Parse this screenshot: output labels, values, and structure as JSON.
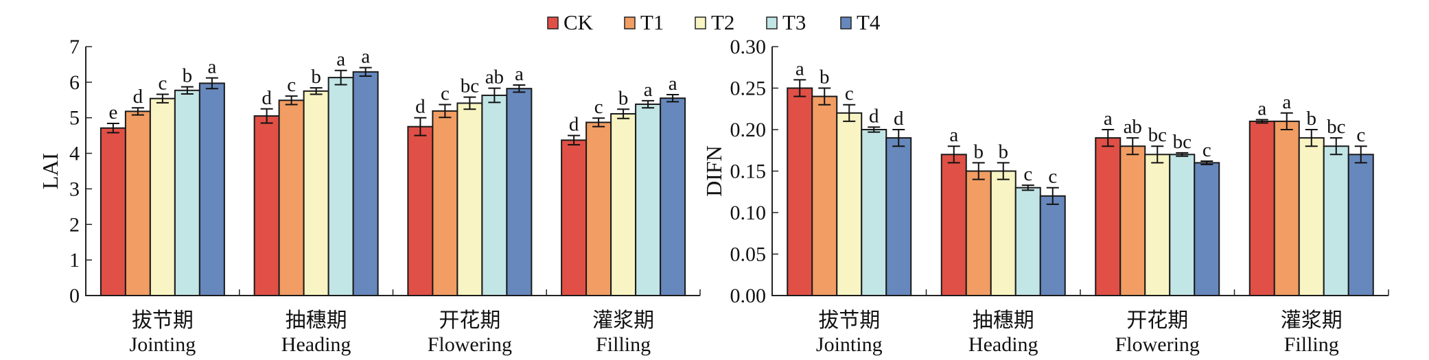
{
  "legend": {
    "items": [
      {
        "name": "CK",
        "color": "#E05046"
      },
      {
        "name": "T1",
        "color": "#F19D63"
      },
      {
        "name": "T2",
        "color": "#F8F4C3"
      },
      {
        "name": "T3",
        "color": "#C2E5E6"
      },
      {
        "name": "T4",
        "color": "#6688BC"
      }
    ]
  },
  "chart_data": [
    {
      "type": "bar",
      "title": "",
      "xlabel": "",
      "ylabel": "LAI",
      "ylim": [
        0,
        7
      ],
      "yticks": [
        "0",
        "1",
        "2",
        "3",
        "4",
        "5",
        "6",
        "7"
      ],
      "ytick_values": [
        0,
        1,
        2,
        3,
        4,
        5,
        6,
        7
      ],
      "grid": false,
      "legend_position": "top-center",
      "categories": [
        {
          "cn": "拔节期",
          "en": "Jointing"
        },
        {
          "cn": "抽穗期",
          "en": "Heading"
        },
        {
          "cn": "开花期",
          "en": "Flowering"
        },
        {
          "cn": "灌浆期",
          "en": "Filling"
        }
      ],
      "series": [
        {
          "name": "CK",
          "values": [
            4.71,
            5.05,
            4.75,
            4.37
          ],
          "errors": [
            0.13,
            0.2,
            0.25,
            0.13
          ],
          "letters": [
            "e",
            "d",
            "d",
            "d"
          ]
        },
        {
          "name": "T1",
          "values": [
            5.18,
            5.49,
            5.19,
            4.87
          ],
          "errors": [
            0.1,
            0.12,
            0.18,
            0.12
          ],
          "letters": [
            "d",
            "c",
            "c",
            "c"
          ]
        },
        {
          "name": "T2",
          "values": [
            5.54,
            5.75,
            5.41,
            5.11
          ],
          "errors": [
            0.12,
            0.09,
            0.17,
            0.13
          ],
          "letters": [
            "c",
            "b",
            "bc",
            "b"
          ]
        },
        {
          "name": "T3",
          "values": [
            5.77,
            6.13,
            5.63,
            5.38
          ],
          "errors": [
            0.1,
            0.2,
            0.2,
            0.1
          ],
          "letters": [
            "b",
            "a",
            "ab",
            "a"
          ]
        },
        {
          "name": "T4",
          "values": [
            5.97,
            6.29,
            5.82,
            5.55
          ],
          "errors": [
            0.15,
            0.12,
            0.1,
            0.1
          ],
          "letters": [
            "a",
            "a",
            "a",
            "a"
          ]
        }
      ]
    },
    {
      "type": "bar",
      "title": "",
      "xlabel": "",
      "ylabel": "DIFN",
      "ylim": [
        0,
        0.3
      ],
      "yticks": [
        "0.00",
        "0.05",
        "0.10",
        "0.15",
        "0.20",
        "0.25",
        "0.30"
      ],
      "ytick_values": [
        0,
        0.05,
        0.1,
        0.15,
        0.2,
        0.25,
        0.3
      ],
      "grid": false,
      "legend_position": "top-center",
      "categories": [
        {
          "cn": "拔节期",
          "en": "Jointing"
        },
        {
          "cn": "抽穗期",
          "en": "Heading"
        },
        {
          "cn": "开花期",
          "en": "Flowering"
        },
        {
          "cn": "灌浆期",
          "en": "Filling"
        }
      ],
      "series": [
        {
          "name": "CK",
          "values": [
            0.25,
            0.17,
            0.19,
            0.21
          ],
          "errors": [
            0.01,
            0.01,
            0.01,
            0.002
          ],
          "letters": [
            "a",
            "a",
            "a",
            "a"
          ]
        },
        {
          "name": "T1",
          "values": [
            0.24,
            0.15,
            0.18,
            0.21
          ],
          "errors": [
            0.01,
            0.01,
            0.01,
            0.01
          ],
          "letters": [
            "b",
            "b",
            "ab",
            "a"
          ]
        },
        {
          "name": "T2",
          "values": [
            0.22,
            0.15,
            0.17,
            0.19
          ],
          "errors": [
            0.01,
            0.01,
            0.01,
            0.01
          ],
          "letters": [
            "c",
            "b",
            "bc",
            "b"
          ]
        },
        {
          "name": "T3",
          "values": [
            0.2,
            0.13,
            0.17,
            0.18
          ],
          "errors": [
            0.003,
            0.003,
            0.002,
            0.01
          ],
          "letters": [
            "d",
            "c",
            "bc",
            "bc"
          ]
        },
        {
          "name": "T4",
          "values": [
            0.19,
            0.12,
            0.16,
            0.17
          ],
          "errors": [
            0.01,
            0.01,
            0.002,
            0.01
          ],
          "letters": [
            "d",
            "c",
            "c",
            "c"
          ]
        }
      ]
    }
  ]
}
